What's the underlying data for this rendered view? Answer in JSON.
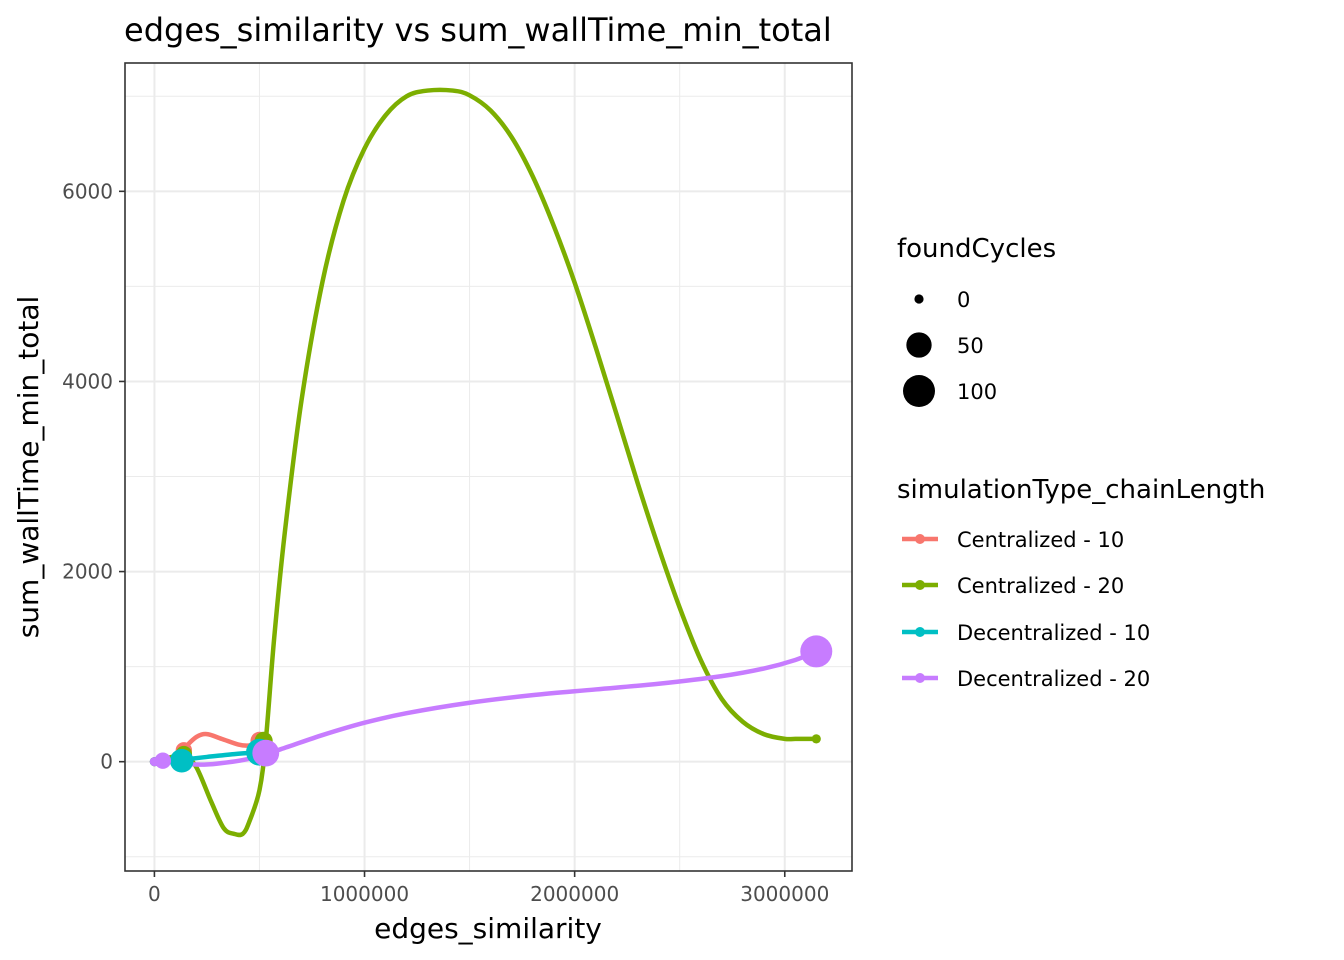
{
  "chart_data": {
    "type": "line",
    "title": "edges_similarity  vs  sum_wallTime_min_total",
    "xlabel": "edges_similarity",
    "ylabel": "sum_wallTime_min_total",
    "xlim": [
      -140000,
      3320000
    ],
    "ylim": [
      -1150,
      7350
    ],
    "x_ticks": [
      0,
      1000000,
      2000000,
      3000000
    ],
    "x_tick_labels": [
      "0",
      "1000000",
      "2000000",
      "3000000"
    ],
    "y_ticks": [
      0,
      2000,
      4000,
      6000
    ],
    "y_tick_labels": [
      "0",
      "2000",
      "4000",
      "6000"
    ],
    "grid": true,
    "size_legend": {
      "title": "foundCycles",
      "entries": [
        {
          "label": "0",
          "value": 0
        },
        {
          "label": "50",
          "value": 50
        },
        {
          "label": "100",
          "value": 100
        }
      ]
    },
    "color_legend": {
      "title": "simulationType_chainLength",
      "placement": "right"
    },
    "series": [
      {
        "name": "Centralized - 10",
        "color": "#F8766D",
        "curve": [
          [
            0,
            0
          ],
          [
            40000,
            10
          ],
          [
            100000,
            60
          ],
          [
            140000,
            140
          ],
          [
            200000,
            260
          ],
          [
            250000,
            290
          ],
          [
            320000,
            240
          ],
          [
            400000,
            180
          ],
          [
            450000,
            170
          ],
          [
            500000,
            200
          ]
        ],
        "points": [
          [
            0,
            0,
            0
          ],
          [
            40000,
            10,
            5
          ],
          [
            140000,
            120,
            10
          ],
          [
            500000,
            220,
            15
          ]
        ]
      },
      {
        "name": "Centralized - 20",
        "color": "#7CAE00",
        "curve": [
          [
            0,
            0
          ],
          [
            100000,
            60
          ],
          [
            140000,
            80
          ],
          [
            200000,
            -60
          ],
          [
            270000,
            -420
          ],
          [
            330000,
            -700
          ],
          [
            380000,
            -760
          ],
          [
            420000,
            -760
          ],
          [
            450000,
            -640
          ],
          [
            500000,
            -300
          ],
          [
            530000,
            220
          ],
          [
            570000,
            1300
          ],
          [
            620000,
            2400
          ],
          [
            700000,
            3800
          ],
          [
            800000,
            5050
          ],
          [
            900000,
            5900
          ],
          [
            1000000,
            6450
          ],
          [
            1100000,
            6800
          ],
          [
            1200000,
            7000
          ],
          [
            1300000,
            7060
          ],
          [
            1420000,
            7060
          ],
          [
            1500000,
            7010
          ],
          [
            1600000,
            6850
          ],
          [
            1700000,
            6570
          ],
          [
            1800000,
            6160
          ],
          [
            1900000,
            5640
          ],
          [
            2000000,
            5040
          ],
          [
            2100000,
            4360
          ],
          [
            2200000,
            3650
          ],
          [
            2300000,
            2930
          ],
          [
            2400000,
            2250
          ],
          [
            2500000,
            1620
          ],
          [
            2600000,
            1070
          ],
          [
            2700000,
            660
          ],
          [
            2800000,
            420
          ],
          [
            2900000,
            290
          ],
          [
            3000000,
            240
          ],
          [
            3050000,
            240
          ],
          [
            3150000,
            240
          ]
        ],
        "points": [
          [
            0,
            0,
            0
          ],
          [
            40000,
            10,
            5
          ],
          [
            140000,
            80,
            10
          ],
          [
            520000,
            220,
            15
          ],
          [
            3150000,
            240,
            0
          ]
        ]
      },
      {
        "name": "Decentralized - 10",
        "color": "#00BFC4",
        "curve": [
          [
            0,
            0
          ],
          [
            60000,
            5
          ],
          [
            130000,
            20
          ],
          [
            250000,
            50
          ],
          [
            380000,
            80
          ],
          [
            500000,
            100
          ]
        ],
        "points": [
          [
            0,
            0,
            0
          ],
          [
            130000,
            10,
            40
          ],
          [
            500000,
            100,
            60
          ]
        ]
      },
      {
        "name": "Decentralized - 20",
        "color": "#C77CFF",
        "curve": [
          [
            0,
            0
          ],
          [
            100000,
            -5
          ],
          [
            200000,
            -30
          ],
          [
            300000,
            -20
          ],
          [
            450000,
            30
          ],
          [
            600000,
            130
          ],
          [
            800000,
            280
          ],
          [
            1000000,
            410
          ],
          [
            1200000,
            510
          ],
          [
            1500000,
            620
          ],
          [
            1800000,
            700
          ],
          [
            2100000,
            760
          ],
          [
            2400000,
            820
          ],
          [
            2700000,
            900
          ],
          [
            2900000,
            980
          ],
          [
            3050000,
            1070
          ],
          [
            3150000,
            1160
          ]
        ],
        "points": [
          [
            0,
            0,
            0
          ],
          [
            40000,
            10,
            10
          ],
          [
            530000,
            90,
            60
          ],
          [
            3150000,
            1160,
            100
          ]
        ]
      }
    ]
  }
}
